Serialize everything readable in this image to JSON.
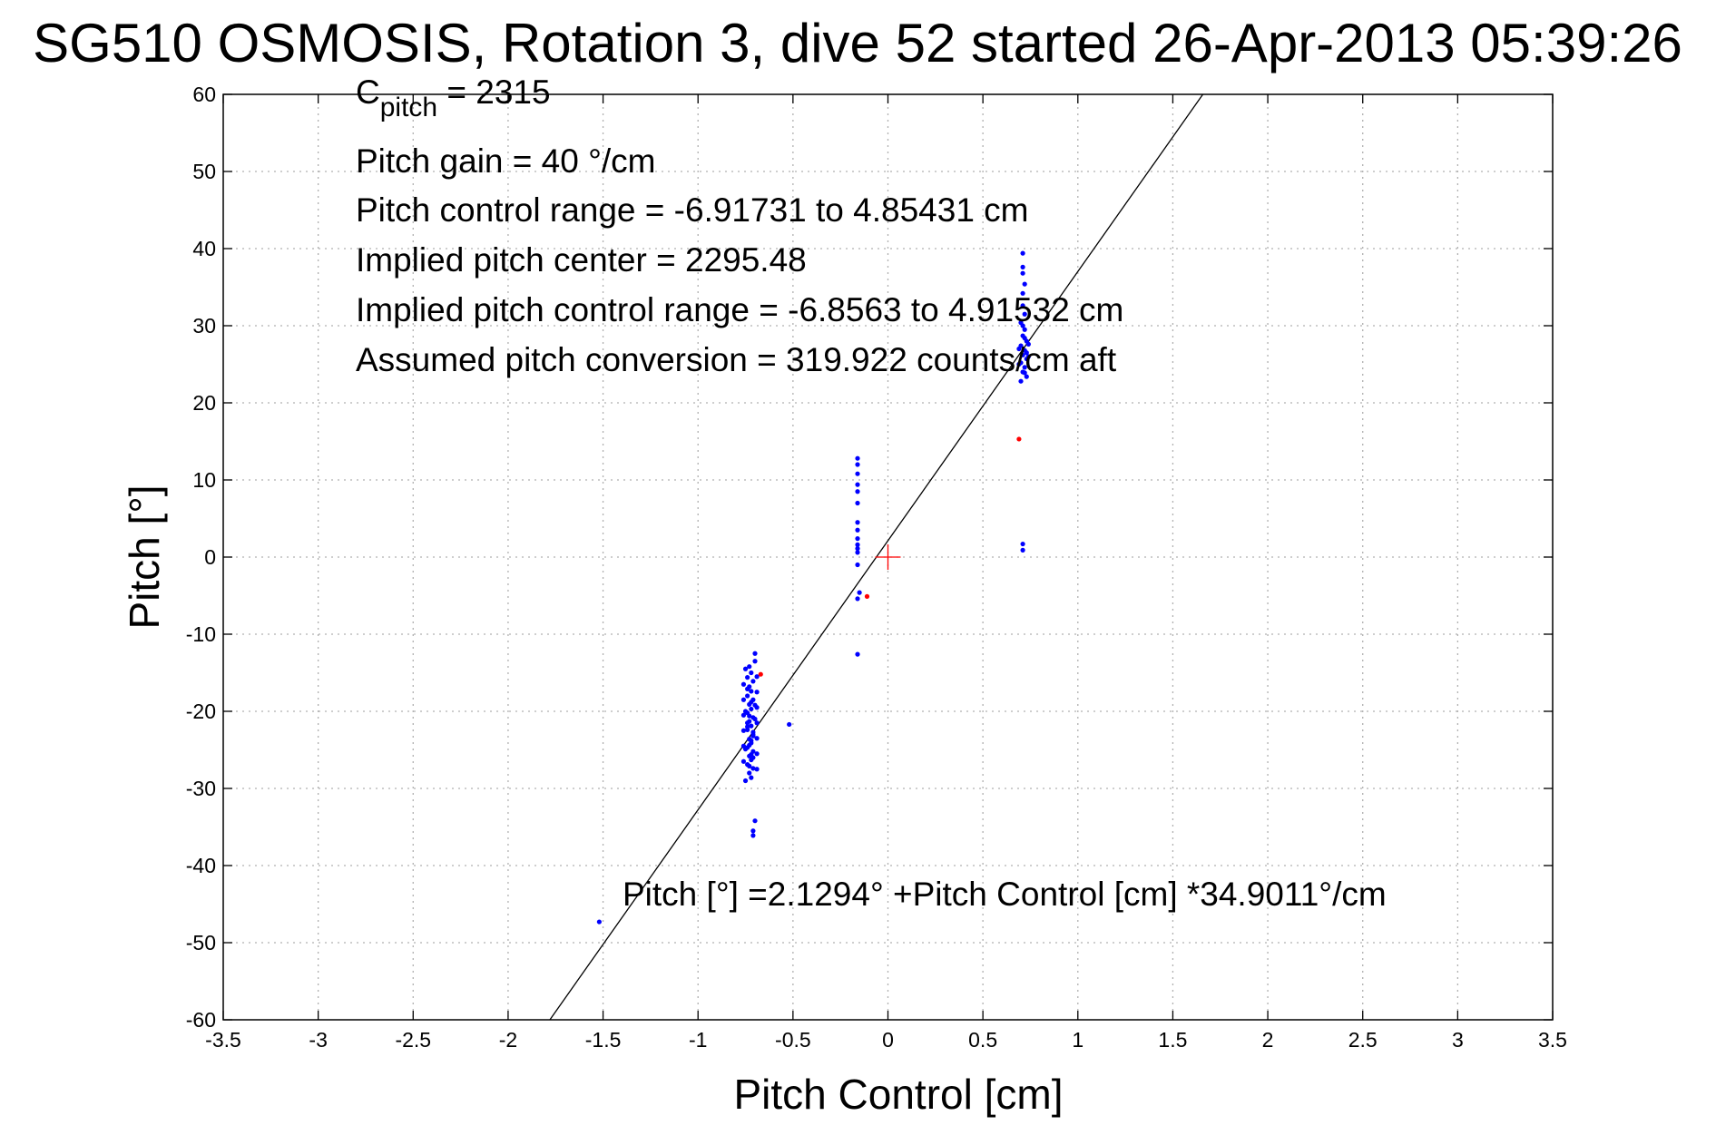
{
  "chart_data": {
    "type": "scatter",
    "title": "SG510 OSMOSIS, Rotation 3, dive 52 started 26-Apr-2013 05:39:26",
    "xlabel": "Pitch Control [cm]",
    "ylabel": "Pitch [°]",
    "xlim": [
      -3.5,
      3.5
    ],
    "ylim": [
      -60,
      60
    ],
    "xticks": [
      -3.5,
      -3,
      -2.5,
      -2,
      -1.5,
      -1,
      -0.5,
      0,
      0.5,
      1,
      1.5,
      2,
      2.5,
      3,
      3.5
    ],
    "yticks": [
      -60,
      -50,
      -40,
      -30,
      -20,
      -10,
      0,
      10,
      20,
      30,
      40,
      50,
      60
    ],
    "grid": true,
    "annotations": {
      "cpitch_c": "C",
      "cpitch_sub": "pitch",
      "cpitch_value": " = 2315",
      "pitch_gain": "Pitch gain = 40 °/cm",
      "control_range": "Pitch control range = -6.91731 to 4.85431 cm",
      "implied_center": "Implied pitch center = 2295.48",
      "implied_range": "Implied pitch control range = -6.8563 to 4.91532 cm",
      "assumed_conversion": "Assumed pitch conversion = 319.922 counts/cm aft",
      "fit_equation": "Pitch [°] =2.1294° +Pitch Control [cm] *34.9011°/cm"
    },
    "fit_line": {
      "intercept": 2.1294,
      "slope": 34.9011,
      "color": "#000000"
    },
    "center_marker": {
      "x": 0,
      "y": 0,
      "color": "#ff0000"
    },
    "series": [
      {
        "color": "#0000ff",
        "points": [
          [
            -0.73,
            -14.2
          ],
          [
            -0.72,
            -15.0
          ],
          [
            -0.74,
            -15.6
          ],
          [
            -0.71,
            -16.1
          ],
          [
            -0.73,
            -16.8
          ],
          [
            -0.72,
            -17.4
          ],
          [
            -0.74,
            -18.0
          ],
          [
            -0.71,
            -18.5
          ],
          [
            -0.73,
            -19.1
          ],
          [
            -0.72,
            -19.7
          ],
          [
            -0.74,
            -20.2
          ],
          [
            -0.71,
            -20.8
          ],
          [
            -0.73,
            -21.3
          ],
          [
            -0.72,
            -21.9
          ],
          [
            -0.74,
            -22.4
          ],
          [
            -0.71,
            -23.0
          ],
          [
            -0.73,
            -23.6
          ],
          [
            -0.72,
            -24.1
          ],
          [
            -0.74,
            -24.7
          ],
          [
            -0.71,
            -25.2
          ],
          [
            -0.73,
            -25.8
          ],
          [
            -0.72,
            -26.3
          ],
          [
            -0.74,
            -26.9
          ],
          [
            -0.71,
            -27.4
          ],
          [
            -0.73,
            -28.0
          ],
          [
            -0.72,
            -28.6
          ],
          [
            -0.75,
            -29.0
          ],
          [
            -0.7,
            -13.5
          ],
          [
            -0.7,
            -12.5
          ],
          [
            -0.75,
            -14.5
          ],
          [
            -0.69,
            -15.5
          ],
          [
            -0.76,
            -16.5
          ],
          [
            -0.69,
            -17.5
          ],
          [
            -0.76,
            -18.5
          ],
          [
            -0.69,
            -19.5
          ],
          [
            -0.76,
            -20.5
          ],
          [
            -0.69,
            -21.5
          ],
          [
            -0.76,
            -22.5
          ],
          [
            -0.69,
            -23.5
          ],
          [
            -0.76,
            -24.5
          ],
          [
            -0.69,
            -25.5
          ],
          [
            -0.76,
            -26.5
          ],
          [
            -0.69,
            -27.5
          ],
          [
            -0.75,
            -20.0
          ],
          [
            -0.7,
            -21.0
          ],
          [
            -0.74,
            -22.0
          ],
          [
            -0.71,
            -23.2
          ],
          [
            -0.73,
            -24.4
          ],
          [
            -0.72,
            -25.6
          ],
          [
            -0.74,
            -21.5
          ],
          [
            -0.71,
            -22.7
          ],
          [
            -0.73,
            -20.6
          ],
          [
            -0.72,
            -23.8
          ],
          [
            -0.75,
            -24.9
          ],
          [
            -0.7,
            -19.2
          ],
          [
            -0.74,
            -17.1
          ],
          [
            -0.71,
            -26.0
          ],
          [
            -0.73,
            -27.1
          ],
          [
            -0.72,
            -18.8
          ],
          [
            -0.7,
            -34.2
          ],
          [
            -0.71,
            -35.5
          ],
          [
            -0.71,
            -36.1
          ],
          [
            -0.52,
            -21.7
          ],
          [
            -0.16,
            12.8
          ],
          [
            -0.16,
            12.0
          ],
          [
            -0.16,
            10.8
          ],
          [
            -0.16,
            9.4
          ],
          [
            -0.16,
            8.5
          ],
          [
            -0.16,
            7.0
          ],
          [
            -0.16,
            4.5
          ],
          [
            -0.16,
            3.5
          ],
          [
            -0.16,
            2.4
          ],
          [
            -0.16,
            1.6
          ],
          [
            -0.16,
            1.1
          ],
          [
            -0.16,
            0.6
          ],
          [
            -0.16,
            -1.0
          ],
          [
            -0.15,
            -4.6
          ],
          [
            -0.16,
            -5.4
          ],
          [
            -0.16,
            -12.6
          ],
          [
            0.71,
            39.4
          ],
          [
            0.71,
            37.6
          ],
          [
            0.71,
            36.8
          ],
          [
            0.72,
            35.4
          ],
          [
            0.71,
            34.2
          ],
          [
            0.71,
            32.6
          ],
          [
            0.72,
            31.5
          ],
          [
            0.7,
            30.4
          ],
          [
            0.72,
            29.5
          ],
          [
            0.71,
            28.7
          ],
          [
            0.73,
            28.0
          ],
          [
            0.7,
            27.4
          ],
          [
            0.72,
            26.8
          ],
          [
            0.71,
            26.2
          ],
          [
            0.73,
            25.7
          ],
          [
            0.7,
            25.2
          ],
          [
            0.72,
            24.6
          ],
          [
            0.71,
            24.0
          ],
          [
            0.73,
            23.4
          ],
          [
            0.7,
            22.8
          ],
          [
            0.74,
            27.6
          ],
          [
            0.69,
            27.0
          ],
          [
            0.74,
            26.0
          ],
          [
            0.69,
            25.0
          ],
          [
            0.72,
            23.9
          ],
          [
            0.71,
            30.0
          ],
          [
            0.72,
            28.4
          ],
          [
            0.73,
            26.5
          ],
          [
            0.71,
            1.7
          ],
          [
            0.71,
            0.9
          ],
          [
            -1.52,
            -47.3
          ]
        ]
      },
      {
        "color": "#ff0000",
        "points": [
          [
            -0.67,
            -15.2
          ],
          [
            -0.11,
            -5.1
          ],
          [
            0.69,
            15.3
          ]
        ]
      }
    ]
  }
}
